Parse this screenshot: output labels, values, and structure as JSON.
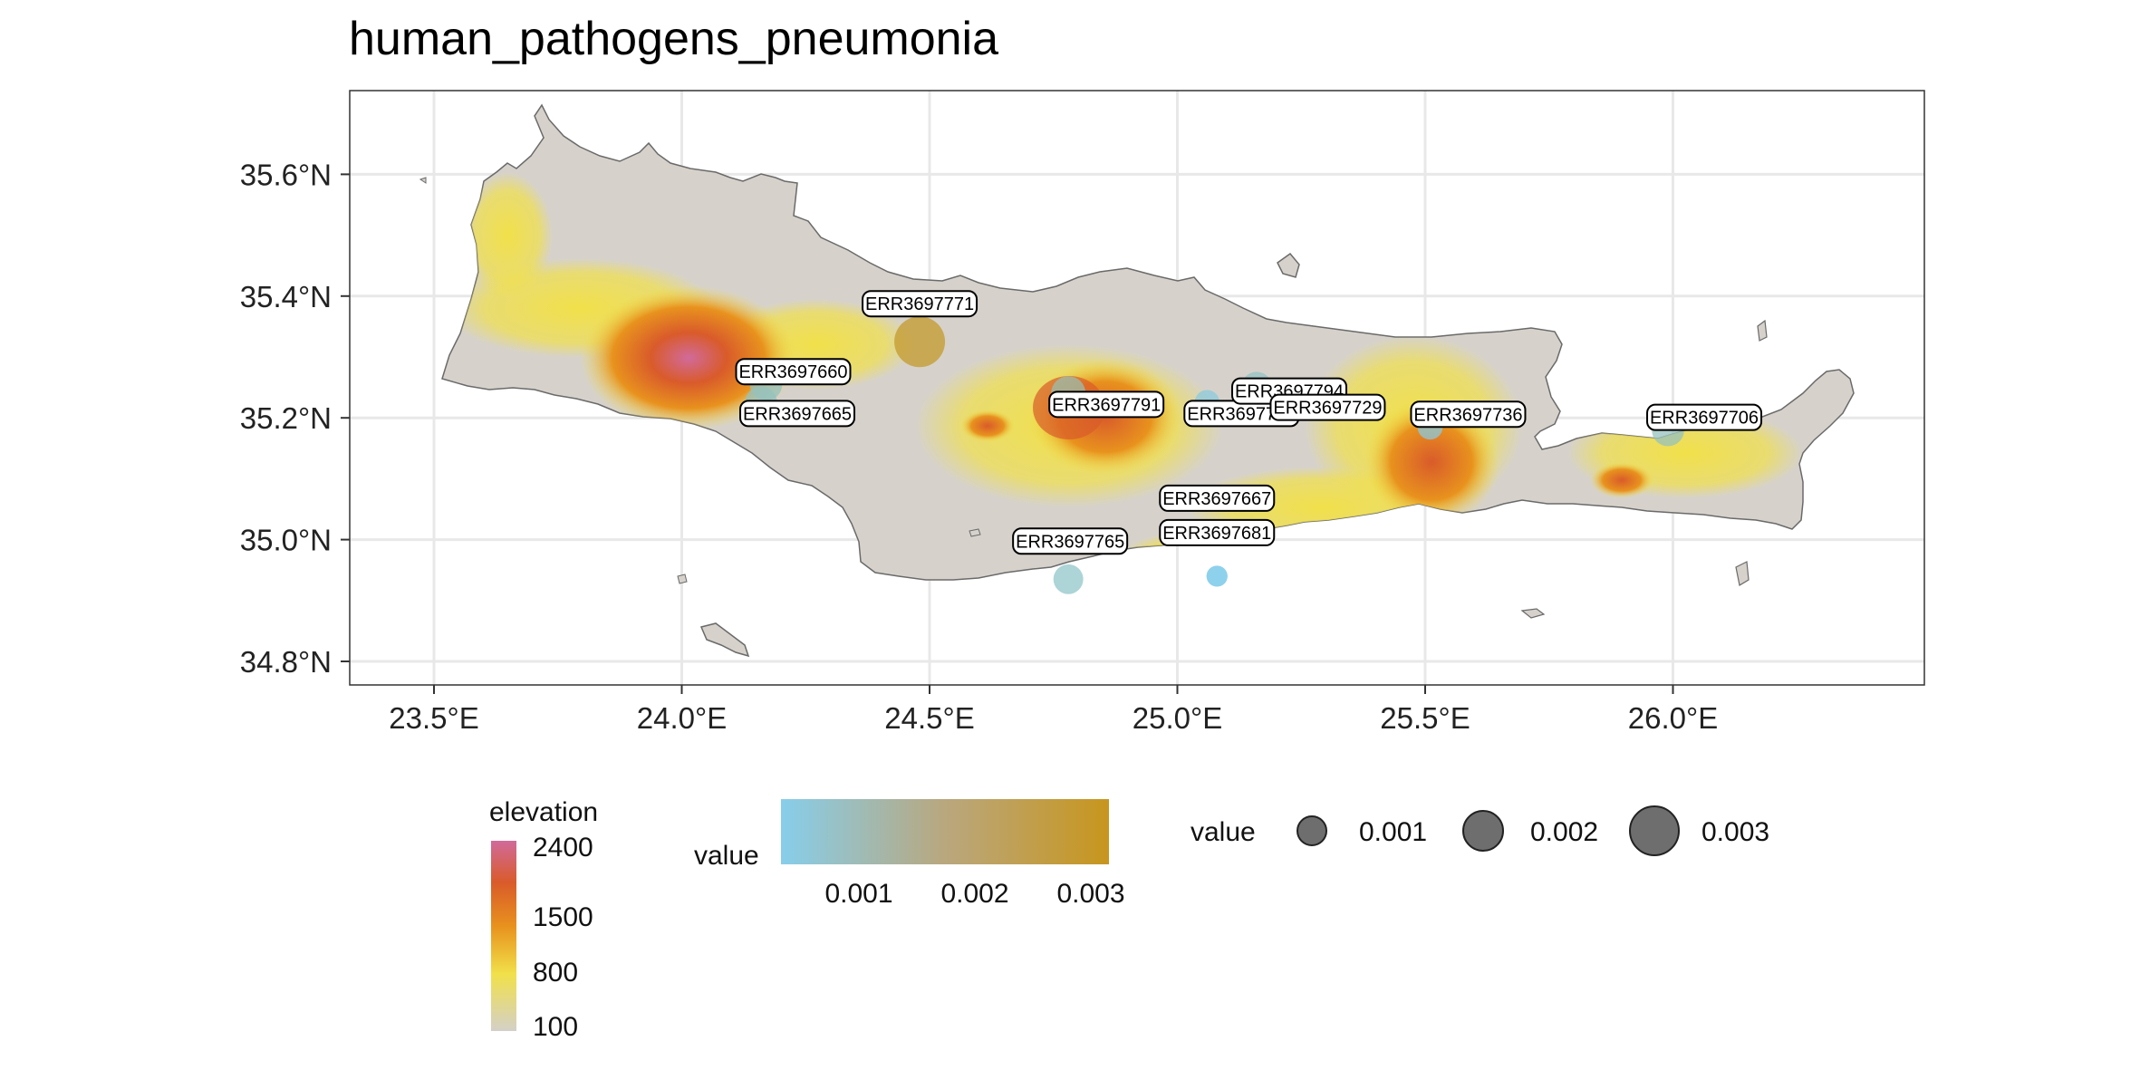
{
  "title": "human_pathogens_pneumonia",
  "axes": {
    "x_ticks": [
      {
        "value": 23.5,
        "label": "23.5°E"
      },
      {
        "value": 24.0,
        "label": "24.0°E"
      },
      {
        "value": 24.5,
        "label": "24.5°E"
      },
      {
        "value": 25.0,
        "label": "25.0°E"
      },
      {
        "value": 25.5,
        "label": "25.5°E"
      },
      {
        "value": 26.0,
        "label": "26.0°E"
      }
    ],
    "y_ticks": [
      {
        "value": 34.8,
        "label": "34.8°N"
      },
      {
        "value": 35.0,
        "label": "35.0°N"
      },
      {
        "value": 35.2,
        "label": "35.2°N"
      },
      {
        "value": 35.4,
        "label": "35.4°N"
      },
      {
        "value": 35.6,
        "label": "35.6°N"
      }
    ],
    "xlim": [
      23.33,
      26.5
    ],
    "ylim": [
      34.76,
      35.73
    ]
  },
  "colors": {
    "low_value": "#87ceeb",
    "high_value": "#c8961e",
    "elevation_low": "#d4d0c8",
    "elevation_mid": "#f1e04a",
    "elevation_orange": "#e8921e",
    "elevation_high": "#d95b2a",
    "elevation_peak": "#d16a9a",
    "grid": "#e8e8e8"
  },
  "chart_data": {
    "type": "scatter",
    "points": [
      {
        "label": "ERR3697771",
        "lon": 24.48,
        "lat": 35.325,
        "value": 0.0031
      },
      {
        "label": "ERR3697660",
        "lon": 24.17,
        "lat": 35.255,
        "value": 0.0009
      },
      {
        "label": "ERR3697665",
        "lon": 24.16,
        "lat": 35.225,
        "value": 0.0009
      },
      {
        "label": "ERR3697791",
        "lon": 24.78,
        "lat": 35.24,
        "value": 0.0011
      },
      {
        "label": "ERR3697746",
        "lon": 25.06,
        "lat": 35.225,
        "value": 0.0004
      },
      {
        "label": "ERR3697794",
        "lon": 25.16,
        "lat": 35.25,
        "value": 0.0008
      },
      {
        "label": "ERR3697729",
        "lon": 25.19,
        "lat": 35.235,
        "value": 0.0006
      },
      {
        "label": "ERR3697736",
        "lon": 25.51,
        "lat": 35.185,
        "value": 0.0004
      },
      {
        "label": "ERR3697706",
        "lon": 25.99,
        "lat": 35.18,
        "value": 0.0009
      },
      {
        "label": "ERR3697667",
        "lon": 25.08,
        "lat": 34.94,
        "value": 0.0002
      },
      {
        "label": "ERR3697681",
        "lon": 25.08,
        "lat": 34.94,
        "value": 0.0002
      },
      {
        "label": "ERR3697765",
        "lon": 24.78,
        "lat": 34.935,
        "value": 0.0007
      }
    ]
  },
  "legend": {
    "elevation": {
      "title": "elevation",
      "labels": [
        "2400",
        "1500",
        "800",
        "100"
      ]
    },
    "value_colour": {
      "title": "value",
      "labels": [
        "0.001",
        "0.002",
        "0.003"
      ]
    },
    "value_size": {
      "title": "value",
      "labels": [
        "0.001",
        "0.002",
        "0.003"
      ]
    }
  }
}
